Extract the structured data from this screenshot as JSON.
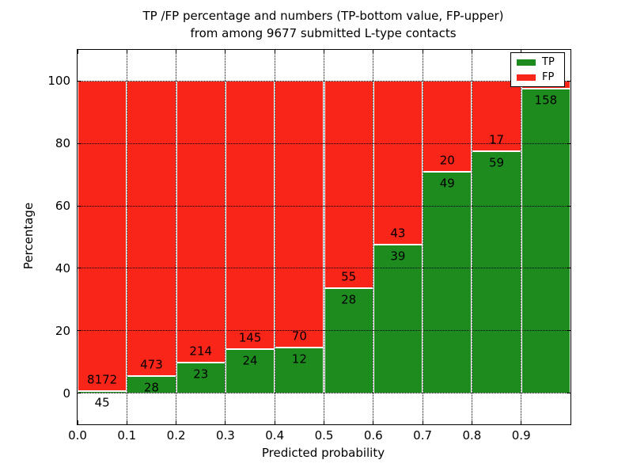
{
  "chart_data": {
    "type": "bar",
    "stacked": true,
    "title": [
      "TP /FP percentage and numbers (TP-bottom value, FP-upper)",
      "from among 9677 submitted L-type contacts"
    ],
    "xlabel": "Predicted probability",
    "ylabel": "Percentage",
    "total_submitted_contacts": 9677,
    "xlim": [
      0,
      1
    ],
    "ylim": [
      -10,
      110
    ],
    "xticks": [
      "0.0",
      "0.1",
      "0.2",
      "0.3",
      "0.4",
      "0.5",
      "0.6",
      "0.7",
      "0.8",
      "0.9"
    ],
    "yticks": [
      0,
      20,
      40,
      60,
      80,
      100
    ],
    "grid": "dotted",
    "colors": {
      "tp": "#1e8b1e",
      "fp": "#fa2519"
    },
    "x_bins": [
      [
        0.0,
        0.1
      ],
      [
        0.1,
        0.2
      ],
      [
        0.2,
        0.3
      ],
      [
        0.3,
        0.4
      ],
      [
        0.4,
        0.5
      ],
      [
        0.5,
        0.6
      ],
      [
        0.6,
        0.7
      ],
      [
        0.7,
        0.8
      ],
      [
        0.8,
        0.9
      ],
      [
        0.9,
        1.0
      ]
    ],
    "bars": [
      {
        "tp": 45,
        "fp": 8172,
        "tp_pct": 0.55
      },
      {
        "tp": 28,
        "fp": 473,
        "tp_pct": 5.59
      },
      {
        "tp": 23,
        "fp": 214,
        "tp_pct": 9.7
      },
      {
        "tp": 24,
        "fp": 145,
        "tp_pct": 14.2
      },
      {
        "tp": 12,
        "fp": 70,
        "tp_pct": 14.63
      },
      {
        "tp": 28,
        "fp": 55,
        "tp_pct": 33.73
      },
      {
        "tp": 39,
        "fp": 43,
        "tp_pct": 47.56
      },
      {
        "tp": 49,
        "fp": 20,
        "tp_pct": 71.01
      },
      {
        "tp": 59,
        "fp": 17,
        "tp_pct": 77.63
      },
      {
        "tp": 158,
        "fp": null,
        "tp_pct": 97.5
      }
    ],
    "legend": {
      "position": "upper right",
      "items": [
        {
          "label": "TP",
          "color": "#1e8b1e"
        },
        {
          "label": "FP",
          "color": "#fa2519"
        }
      ]
    }
  }
}
